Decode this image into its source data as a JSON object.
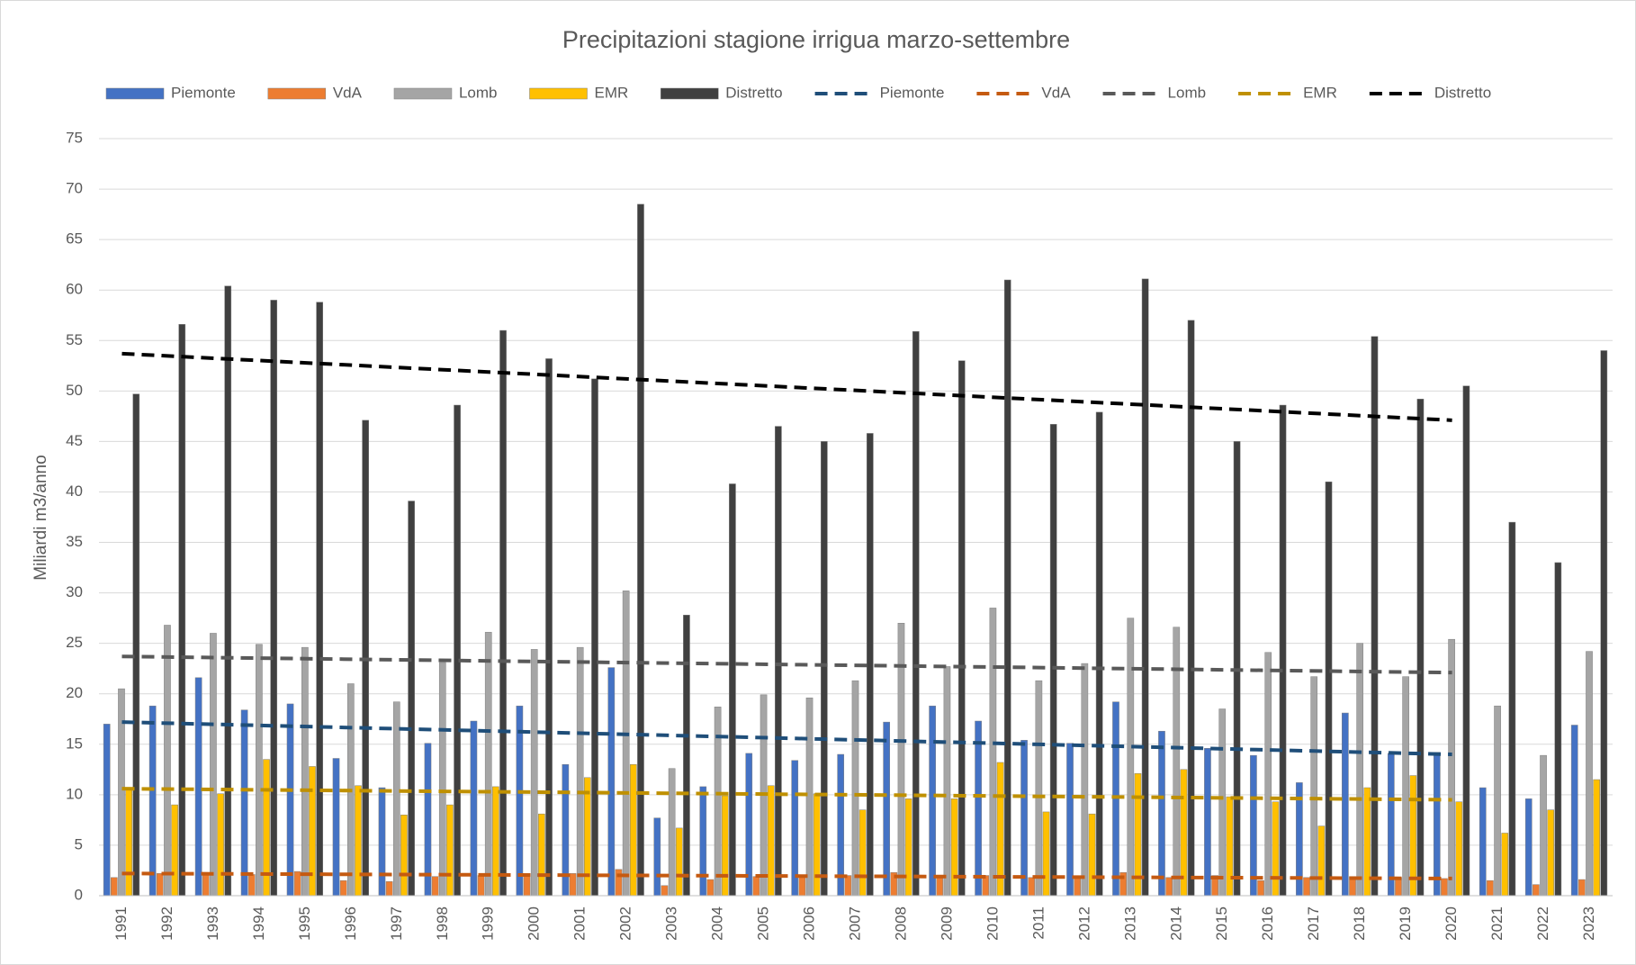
{
  "chart_data": {
    "type": "bar",
    "title": "Precipitazioni stagione irrigua marzo-settembre",
    "y_label": "Miliardi m3/anno",
    "categories": [
      "1991",
      "1992",
      "1993",
      "1994",
      "1995",
      "1996",
      "1997",
      "1998",
      "1999",
      "2000",
      "2001",
      "2002",
      "2003",
      "2004",
      "2005",
      "2006",
      "2007",
      "2008",
      "2009",
      "2010",
      "2011",
      "2012",
      "2013",
      "2014",
      "2015",
      "2016",
      "2017",
      "2018",
      "2019",
      "2020",
      "2021",
      "2022",
      "2023"
    ],
    "series": [
      {
        "name": "Piemonte",
        "color": "#4472c4",
        "values": [
          17,
          18.8,
          21.6,
          18.4,
          19,
          13.6,
          10.7,
          15.1,
          17.3,
          18.8,
          13,
          22.6,
          7.7,
          10.8,
          14.1,
          13.4,
          14,
          17.2,
          18.8,
          17.3,
          15.4,
          15.1,
          19.2,
          16.3,
          14.6,
          13.9,
          11.2,
          18.1,
          14.1,
          14.2,
          10.7,
          9.6,
          16.9
        ]
      },
      {
        "name": "VdA",
        "color": "#ed7d31",
        "values": [
          1.8,
          2.2,
          2.3,
          2.1,
          2.4,
          1.5,
          1.4,
          1.9,
          2,
          2.1,
          2.2,
          2.6,
          1,
          1.6,
          1.9,
          2,
          2,
          2.3,
          2,
          2,
          1.8,
          1.9,
          2.3,
          1.8,
          2,
          1.5,
          1.8,
          1.9,
          1.8,
          1.7,
          1.5,
          1.1,
          1.6
        ]
      },
      {
        "name": "Lomb",
        "color": "#a5a5a5",
        "values": [
          20.5,
          26.8,
          26,
          24.9,
          24.6,
          21,
          19.2,
          23.1,
          26.1,
          24.4,
          24.6,
          30.2,
          12.6,
          18.7,
          19.9,
          19.6,
          21.3,
          27,
          22.7,
          28.5,
          21.3,
          23,
          27.5,
          26.6,
          18.5,
          24.1,
          21.7,
          25,
          21.7,
          25.4,
          18.8,
          13.9,
          24.2
        ]
      },
      {
        "name": "EMR",
        "color": "#ffc000",
        "values": [
          10.5,
          9,
          10.1,
          13.5,
          12.8,
          10.9,
          8,
          9,
          10.8,
          8.1,
          11.7,
          13,
          6.7,
          9.9,
          10.9,
          10.1,
          8.5,
          9.6,
          9.6,
          13.2,
          8.3,
          8.1,
          12.1,
          12.5,
          9.8,
          9.3,
          6.9,
          10.7,
          11.9,
          9.3,
          6.2,
          8.5,
          11.5
        ]
      },
      {
        "name": "Distretto",
        "color": "#404040",
        "values": [
          49.7,
          56.6,
          60.4,
          59,
          58.8,
          47.1,
          39.1,
          48.6,
          56,
          53.2,
          51.2,
          68.5,
          27.8,
          40.8,
          46.5,
          45,
          45.8,
          55.9,
          53,
          61,
          46.7,
          47.9,
          61.1,
          57,
          45,
          48.6,
          41,
          55.4,
          49.2,
          50.5,
          37,
          33,
          54
        ]
      }
    ],
    "trendlines": [
      {
        "name": "Piemonte",
        "color": "#1f4e79",
        "x": [
          "1991",
          "2020"
        ],
        "values": [
          17.2,
          14
        ]
      },
      {
        "name": "VdA",
        "color": "#c55a11",
        "x": [
          "1991",
          "2020"
        ],
        "values": [
          2.2,
          1.7
        ]
      },
      {
        "name": "Lomb",
        "color": "#595959",
        "x": [
          "1991",
          "2020"
        ],
        "values": [
          23.7,
          22.1
        ]
      },
      {
        "name": "EMR",
        "color": "#bf9000",
        "x": [
          "1991",
          "2020"
        ],
        "values": [
          10.6,
          9.5
        ]
      },
      {
        "name": "Distretto",
        "color": "#000000",
        "x": [
          "1991",
          "2020"
        ],
        "values": [
          53.7,
          47.1
        ]
      }
    ],
    "ylim": [
      0,
      75
    ],
    "yticks": [
      0,
      5,
      10,
      15,
      20,
      25,
      30,
      35,
      40,
      45,
      50,
      55,
      60,
      65,
      70,
      75
    ],
    "grid": true,
    "legend": "top"
  }
}
